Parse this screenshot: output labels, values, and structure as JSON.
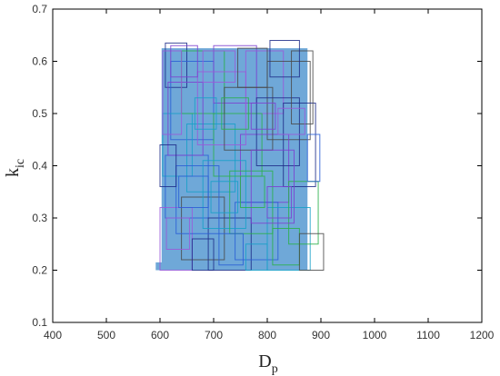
{
  "chart_data": {
    "type": "area",
    "xlim": [
      400,
      1200
    ],
    "ylim": [
      0.1,
      0.7
    ],
    "xticks": [
      "400",
      "500",
      "600",
      "700",
      "800",
      "900",
      "1000",
      "1100",
      "1200"
    ],
    "yticks": [
      "0.1",
      "0.2",
      "0.3",
      "0.4",
      "0.5",
      "0.6",
      "0.7"
    ],
    "xticks_values": [
      400,
      500,
      600,
      700,
      800,
      900,
      1000,
      1100,
      1200
    ],
    "yticks_values": [
      0.1,
      0.2,
      0.3,
      0.4,
      0.5,
      0.6,
      0.7
    ],
    "xlabel": {
      "main": "D",
      "sub": "p"
    },
    "ylabel": {
      "main": "k",
      "sub": "ic"
    },
    "grid": false,
    "region": {
      "color": "#6fa8d8",
      "polygon": [
        [
          592,
          0.2
        ],
        [
          592,
          0.215
        ],
        [
          603,
          0.215
        ],
        [
          603,
          0.625
        ],
        [
          875,
          0.625
        ],
        [
          875,
          0.2
        ]
      ]
    },
    "boxes_color_range": [
      "#1f2d8a",
      "#2a5fd6",
      "#18a0c8",
      "#2ab04a",
      "#7c3fd0",
      "#9b59d9",
      "#4a4a4a"
    ],
    "boxes": [
      [
        610,
        650,
        0.55,
        0.635
      ],
      [
        620,
        700,
        0.45,
        0.6
      ],
      [
        605,
        660,
        0.38,
        0.5
      ],
      [
        640,
        720,
        0.5,
        0.62
      ],
      [
        700,
        780,
        0.52,
        0.63
      ],
      [
        760,
        830,
        0.5,
        0.62
      ],
      [
        800,
        880,
        0.45,
        0.6
      ],
      [
        830,
        890,
        0.36,
        0.52
      ],
      [
        610,
        690,
        0.3,
        0.42
      ],
      [
        650,
        740,
        0.35,
        0.48
      ],
      [
        700,
        790,
        0.38,
        0.5
      ],
      [
        750,
        840,
        0.33,
        0.46
      ],
      [
        600,
        660,
        0.2,
        0.32
      ],
      [
        640,
        720,
        0.22,
        0.34
      ],
      [
        690,
        770,
        0.2,
        0.3
      ],
      [
        740,
        820,
        0.22,
        0.33
      ],
      [
        800,
        880,
        0.2,
        0.32
      ],
      [
        840,
        895,
        0.25,
        0.37
      ],
      [
        615,
        680,
        0.42,
        0.56
      ],
      [
        670,
        760,
        0.44,
        0.58
      ],
      [
        720,
        810,
        0.43,
        0.55
      ],
      [
        780,
        860,
        0.4,
        0.53
      ],
      [
        630,
        710,
        0.27,
        0.4
      ],
      [
        680,
        760,
        0.28,
        0.41
      ],
      [
        730,
        810,
        0.27,
        0.39
      ],
      [
        770,
        850,
        0.29,
        0.43
      ],
      [
        605,
        640,
        0.46,
        0.62
      ],
      [
        845,
        885,
        0.48,
        0.62
      ],
      [
        660,
        700,
        0.2,
        0.26
      ],
      [
        710,
        755,
        0.21,
        0.27
      ],
      [
        760,
        800,
        0.2,
        0.25
      ],
      [
        810,
        860,
        0.21,
        0.28
      ],
      [
        620,
        670,
        0.57,
        0.63
      ],
      [
        680,
        740,
        0.56,
        0.62
      ],
      [
        745,
        800,
        0.55,
        0.625
      ],
      [
        805,
        860,
        0.57,
        0.64
      ],
      [
        635,
        690,
        0.32,
        0.38
      ],
      [
        695,
        745,
        0.31,
        0.37
      ],
      [
        750,
        795,
        0.32,
        0.38
      ],
      [
        800,
        845,
        0.3,
        0.36
      ],
      [
        612,
        655,
        0.24,
        0.3
      ],
      [
        860,
        905,
        0.2,
        0.27
      ],
      [
        600,
        630,
        0.36,
        0.44
      ],
      [
        875,
        898,
        0.37,
        0.46
      ],
      [
        665,
        705,
        0.47,
        0.53
      ],
      [
        715,
        765,
        0.47,
        0.53
      ],
      [
        770,
        815,
        0.47,
        0.52
      ],
      [
        820,
        870,
        0.46,
        0.51
      ]
    ]
  }
}
